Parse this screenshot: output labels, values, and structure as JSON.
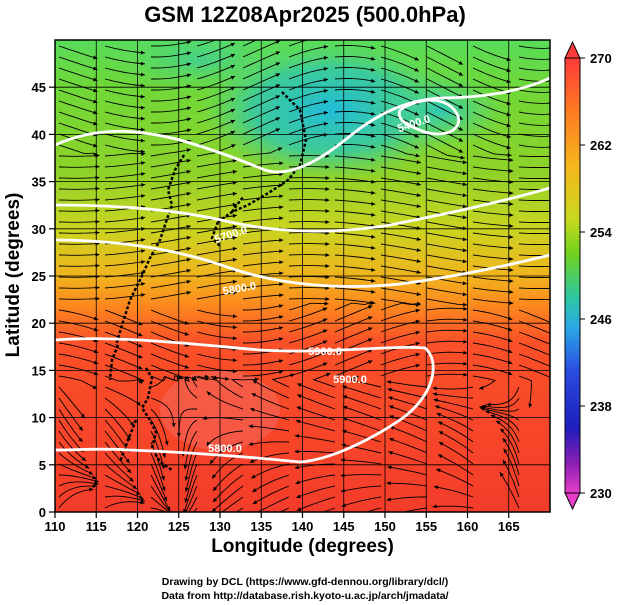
{
  "title": "GSM 12Z08Apr2025 (500.0hPa)",
  "map": {
    "xlabel": "Longitude (degrees)",
    "ylabel": "Latitude  (degrees)",
    "lon_range": [
      110,
      170
    ],
    "lat_range": [
      0,
      50
    ],
    "lon_ticks": [
      "110",
      "115",
      "120",
      "125",
      "130",
      "135",
      "140",
      "145",
      "150",
      "155",
      "160",
      "165"
    ],
    "lat_ticks": [
      "0",
      "5",
      "10",
      "15",
      "20",
      "25",
      "30",
      "35",
      "40",
      "45"
    ],
    "contour_labels": [
      "5400.0",
      "5700.0",
      "5800.0",
      "5900.0",
      "5900.0",
      "5800.0"
    ],
    "field": "temperature (K) shaded with geopotential height contours and wind streamlines"
  },
  "colorbar": {
    "ticks": [
      "270",
      "262",
      "254",
      "246",
      "238",
      "230"
    ],
    "range": [
      230,
      270
    ],
    "colors": [
      "#ff3a3a",
      "#ff8c1e",
      "#f5d21e",
      "#6fd21e",
      "#2ec88a",
      "#2aa8e6",
      "#2a4ce0",
      "#1e1ebe",
      "#7a1eb4",
      "#e63cc8"
    ]
  },
  "credits": {
    "line1": "Drawing by DCL (https://www.gfd-dennou.org/library/dcl/)",
    "line2": "Data from http://database.rish.kyoto-u.ac.jp/arch/jmadata/"
  }
}
